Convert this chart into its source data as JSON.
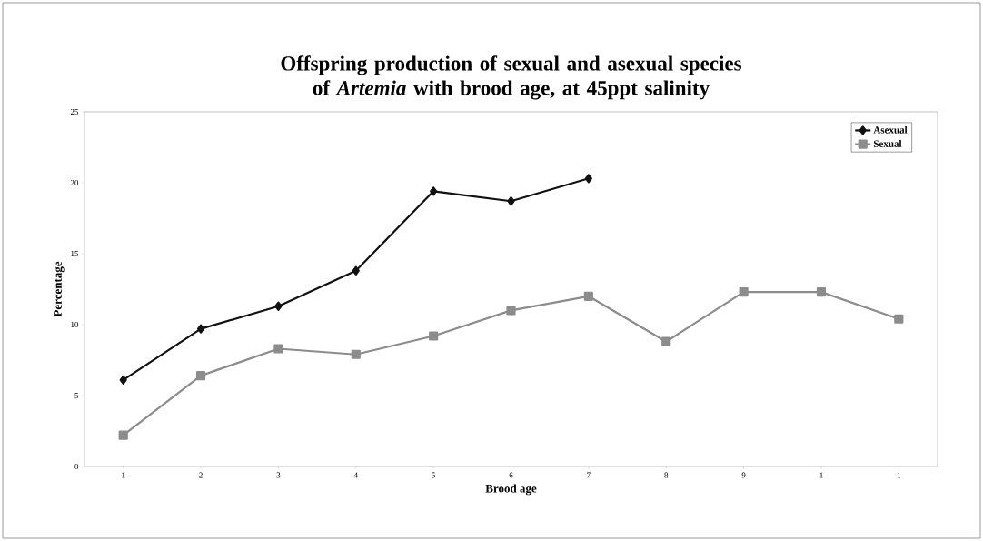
{
  "chart_data": {
    "type": "line",
    "title": "Offspring production of sexual and asexual species of *Artemia* with brood age, at 45ppt salinity",
    "xlabel": "Brood age",
    "ylabel": "Percentage",
    "categories": [
      "1",
      "2",
      "3",
      "4",
      "5",
      "6",
      "7",
      "8",
      "9",
      "1",
      "1"
    ],
    "series": [
      {
        "name": "Asexual",
        "color": "#111111",
        "marker": "diamond",
        "values": [
          6.1,
          9.7,
          11.3,
          13.8,
          19.4,
          18.7,
          20.3,
          null,
          null,
          null,
          null
        ]
      },
      {
        "name": "Sexual",
        "color": "#8c8c8c",
        "marker": "square",
        "values": [
          2.2,
          6.4,
          8.3,
          7.9,
          9.2,
          11.0,
          12.0,
          8.8,
          12.3,
          12.3,
          10.4
        ]
      }
    ],
    "ylim": [
      0,
      25
    ],
    "yticks": [
      0,
      5,
      10,
      15,
      20,
      25
    ],
    "grid": false,
    "legend": "top right",
    "line_style": "solid"
  }
}
